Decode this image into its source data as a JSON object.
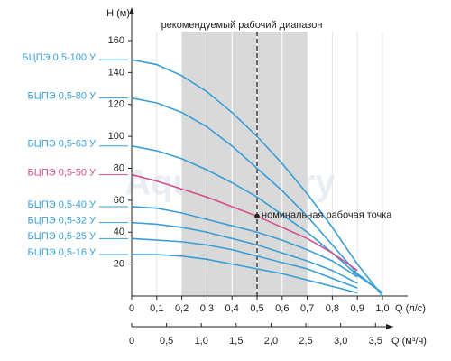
{
  "chart_data": {
    "type": "line",
    "title": "рекомендуемый рабочий диапазон",
    "y_label": "Н (м)",
    "x_label": "Q (л/с)",
    "x2_label": "Q (м³/ч)",
    "watermark": "Aquafactory",
    "nominal_point": {
      "x": 0.5,
      "y": 50,
      "label": "номинальная рабочая точка"
    },
    "recommended_range": [
      0.2,
      0.7
    ],
    "xlim": [
      0,
      1.0
    ],
    "ylim": [
      0,
      160
    ],
    "x2lim": [
      0,
      3.6
    ],
    "yticks": [
      20,
      40,
      60,
      80,
      100,
      120,
      140,
      160
    ],
    "xticks": [
      0,
      {
        "value": 0.1,
        "label": "0,1"
      },
      {
        "value": 0.2,
        "label": "0,2"
      },
      {
        "value": 0.3,
        "label": "0,3"
      },
      {
        "value": 0.4,
        "label": "0,4"
      },
      {
        "value": 0.5,
        "label": "0,5"
      },
      {
        "value": 0.6,
        "label": "0,6"
      },
      {
        "value": 0.7,
        "label": "0,7"
      },
      {
        "value": 0.8,
        "label": "0,8"
      },
      {
        "value": 0.9,
        "label": "0,9"
      },
      {
        "value": 1.0,
        "label": "1,0"
      }
    ],
    "x2ticks": [
      0,
      {
        "value": 0.5,
        "label": "0,5"
      },
      {
        "value": 1.0,
        "label": "1,0"
      },
      {
        "value": 1.5,
        "label": "1,5"
      },
      {
        "value": 2.0,
        "label": "2,0"
      },
      {
        "value": 2.5,
        "label": "2,5"
      },
      {
        "value": 3.0,
        "label": "3,0"
      },
      {
        "value": 3.5,
        "label": "3,5"
      }
    ],
    "x": [
      0,
      0.1,
      0.2,
      0.3,
      0.4,
      0.5,
      0.6,
      0.7,
      0.8,
      0.9,
      1.0
    ],
    "series": [
      {
        "name": "БЦПЭ 0,5-100 У",
        "color": "#3a9fd6",
        "values": [
          148,
          145,
          138,
          128,
          115,
          100,
          83,
          64,
          43,
          20,
          0
        ]
      },
      {
        "name": "БЦПЭ 0,5-80 У",
        "color": "#3a9fd6",
        "values": [
          124,
          121,
          115,
          106,
          94,
          80,
          66,
          50,
          32,
          14,
          2
        ]
      },
      {
        "name": "БЦПЭ 0,5-63 У",
        "color": "#3a9fd6",
        "values": [
          94,
          91,
          86,
          79,
          71,
          62,
          51,
          40,
          27,
          13,
          2
        ]
      },
      {
        "name": "БЦПЭ 0,5-50 У",
        "color": "#d2508c",
        "values": [
          76,
          72,
          67,
          62,
          56,
          50,
          43,
          36,
          27,
          16,
          null
        ]
      },
      {
        "name": "БЦПЭ 0,5-40 У",
        "color": "#3a9fd6",
        "values": [
          56,
          55,
          52,
          48,
          44,
          40,
          35,
          29,
          22,
          12,
          null
        ]
      },
      {
        "name": "БЦПЭ 0,5-32 У",
        "color": "#3a9fd6",
        "values": [
          46,
          45,
          43,
          40,
          36,
          32,
          27,
          22,
          16,
          8,
          null
        ]
      },
      {
        "name": "БЦПЭ 0,5-25 У",
        "color": "#3a9fd6",
        "values": [
          36,
          35,
          34,
          32,
          29,
          25,
          21,
          17,
          11,
          5,
          null
        ]
      },
      {
        "name": "БЦПЭ 0,5-16 У",
        "color": "#3a9fd6",
        "values": [
          26,
          26,
          25,
          23,
          20,
          17,
          14,
          10,
          6,
          2,
          null
        ]
      }
    ]
  }
}
